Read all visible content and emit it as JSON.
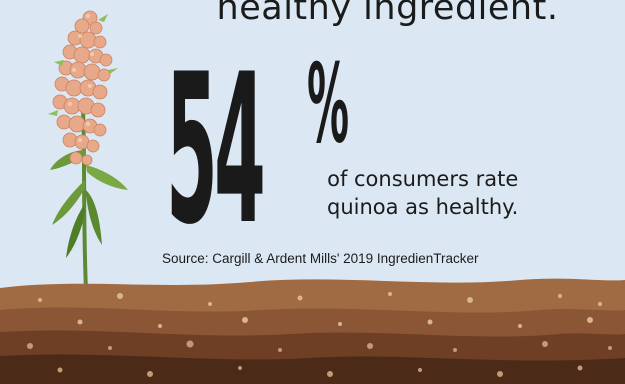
{
  "headline": {
    "top_line": "healthy ingredient.",
    "big_number": "54",
    "percent_sign": "%",
    "caption_line1": "of consumers rate",
    "caption_line2": "quinoa as healthy."
  },
  "source": "Source: Cargill & Ardent Mills' 2019 IngredienTracker",
  "colors": {
    "sky": "#dbe8f4",
    "text": "#1a1a1a",
    "soil_top": "#a06b43",
    "soil_mid": "#7b4a2b",
    "soil_deep": "#4b2a18",
    "flower": "#e8a98a",
    "leaf": "#6c9a3a"
  },
  "illustration": {
    "plant": "quinoa-plant-icon",
    "ground": "soil-layers-icon"
  }
}
